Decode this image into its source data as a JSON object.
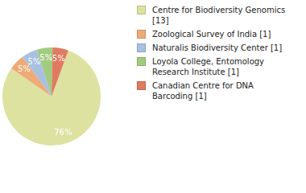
{
  "chart_data": {
    "type": "pie",
    "categories": [
      "Centre for Biodiversity Genomics [13]",
      "Zoological Survey of India [1]",
      "Naturalis Biodiversity Center [1]",
      "Loyola College, Entomology Research Institute [1]",
      "Canadian Centre for DNA Barcoding [1]"
    ],
    "values": [
      76,
      5,
      5,
      5,
      5
    ],
    "value_labels": [
      "76%",
      "5%",
      "5%",
      "5%",
      "5%"
    ],
    "colors": [
      "#dde2a0",
      "#eeab76",
      "#a8c1e0",
      "#a2cb80",
      "#e07b61"
    ],
    "data_labels": true,
    "legend": "right"
  }
}
